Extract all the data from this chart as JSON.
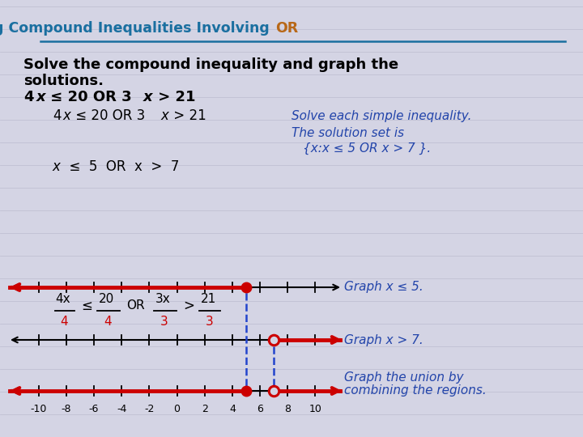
{
  "bg_color": "#d4d4e4",
  "stripe_color": "#c8c8dc",
  "title_blue": "#1a6fa0",
  "title_or_color": "#b86818",
  "black": "#000000",
  "blue_italic": "#2244aa",
  "red": "#cc0000",
  "dashed_blue": "#2244cc",
  "title_text": "Solving Compound Inequalities Involving ",
  "title_or": "OR",
  "line1": "Solve the compound inequality and graph the",
  "line2": "solutions.",
  "line3_pre": "4",
  "line3_x": "x",
  "line3_post": " ≤ 20 OR 3",
  "line3_x2": "x",
  "line3_end": " > 21",
  "step1": "4x ≤ 20 OR 3x > 21",
  "step1_note": "Solve each simple inequality.",
  "step3": "x  ≤  5  OR  x  >  7",
  "sol_line1": "The solution set is",
  "sol_line2": "{x:x ≤ 5 OR x > 7 }.",
  "graph1_label": "Graph x ≤ 5.",
  "graph2_label": "Graph x > 7.",
  "graph3_label1": "Graph the union by",
  "graph3_label2": "combining the regions.",
  "nl_ticks": [
    -10,
    -8,
    -6,
    -4,
    -2,
    0,
    2,
    4,
    6,
    8,
    10
  ],
  "tick_labels": [
    "-10",
    "-8",
    "-6",
    "-4",
    "-2",
    "0",
    "2",
    "4",
    "6",
    "8",
    "10"
  ]
}
